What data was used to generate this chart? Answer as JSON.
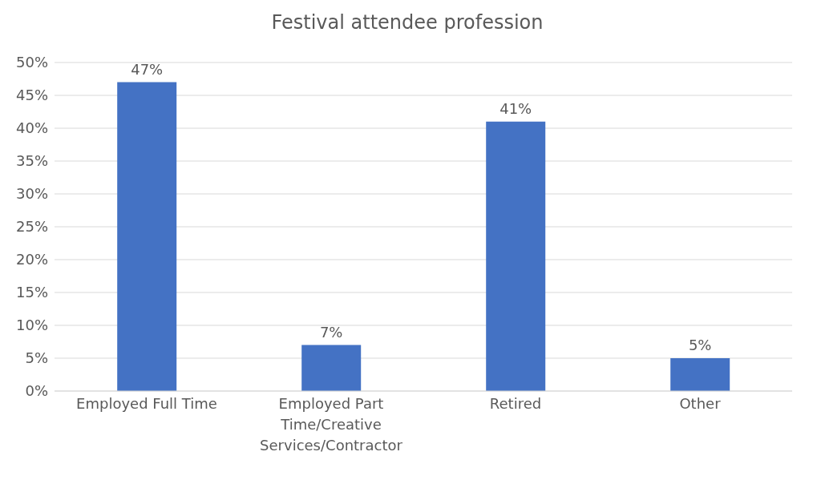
{
  "chart_data": {
    "type": "bar",
    "title": "Festival attendee profession",
    "categories": [
      "Employed Full Time",
      "Employed Part Time/Creative Services/Contractor",
      "Retired",
      "Other"
    ],
    "values": [
      47,
      7,
      41,
      5
    ],
    "value_labels": [
      "47%",
      "7%",
      "41%",
      "5%"
    ],
    "color": "#4472c4",
    "ylim": [
      0,
      50
    ],
    "yticks": [
      {
        "value": 0,
        "label": "0%"
      },
      {
        "value": 5,
        "label": "5%"
      },
      {
        "value": 10,
        "label": "10%"
      },
      {
        "value": 15,
        "label": "15%"
      },
      {
        "value": 20,
        "label": "20%"
      },
      {
        "value": 25,
        "label": "25%"
      },
      {
        "value": 30,
        "label": "30%"
      },
      {
        "value": 35,
        "label": "35%"
      },
      {
        "value": 40,
        "label": "40%"
      },
      {
        "value": 45,
        "label": "45%"
      },
      {
        "value": 50,
        "label": "50%"
      }
    ],
    "grid": "y",
    "legend": false
  }
}
